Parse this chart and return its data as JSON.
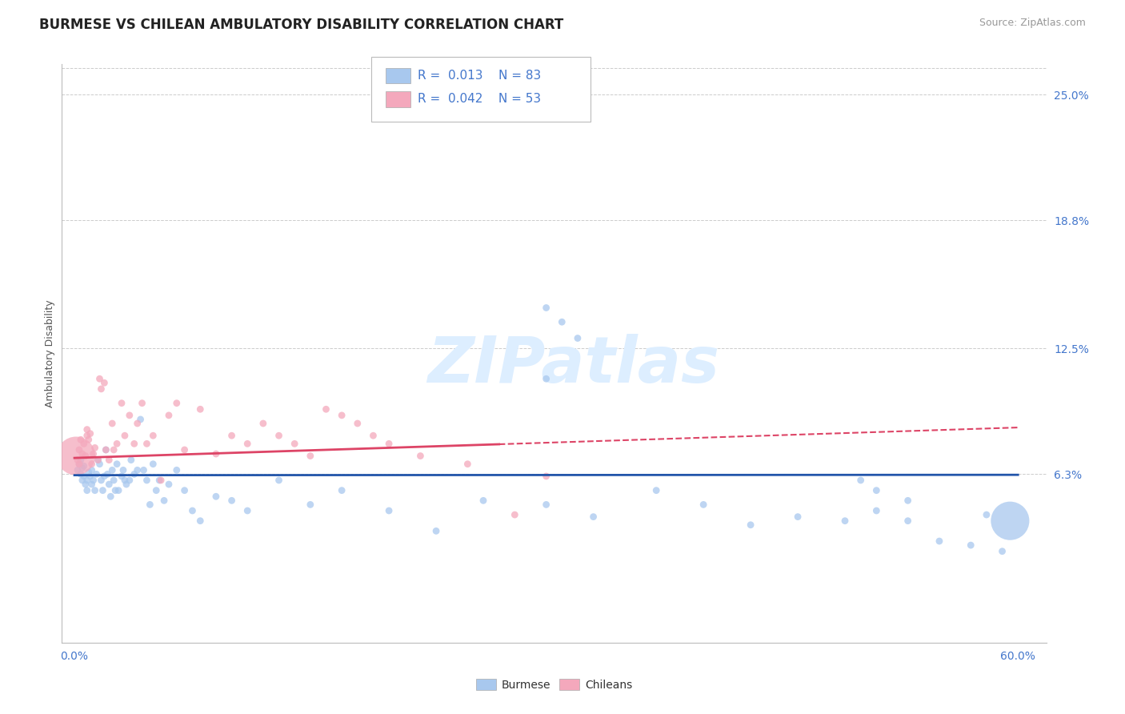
{
  "title": "BURMESE VS CHILEAN AMBULATORY DISABILITY CORRELATION CHART",
  "source": "Source: ZipAtlas.com",
  "ylabel": "Ambulatory Disability",
  "xmin": 0.0,
  "xmax": 0.6,
  "ymin": -0.02,
  "ymax": 0.265,
  "yticks": [
    0.063,
    0.125,
    0.188,
    0.25
  ],
  "ytick_labels": [
    "6.3%",
    "12.5%",
    "18.8%",
    "25.0%"
  ],
  "xticks": [
    0.0,
    0.1,
    0.2,
    0.3,
    0.4,
    0.5,
    0.6
  ],
  "xtick_labels": [
    "0.0%",
    "",
    "",
    "",
    "",
    "",
    "60.0%"
  ],
  "burmese_R": 0.013,
  "burmese_N": 83,
  "chileans_R": 0.042,
  "chileans_N": 53,
  "burmese_color": "#a8c8ee",
  "chileans_color": "#f4a8bc",
  "trend_blue": "#2255aa",
  "trend_pink": "#dd4466",
  "background_color": "#ffffff",
  "grid_color": "#cccccc",
  "tick_label_color": "#4477cc",
  "watermark": "ZIPatlas",
  "watermark_color": "#ddeeff",
  "title_fontsize": 12,
  "axis_label_fontsize": 9,
  "tick_fontsize": 10,
  "burmese_scatter_x": [
    0.002,
    0.003,
    0.004,
    0.004,
    0.005,
    0.005,
    0.006,
    0.006,
    0.007,
    0.008,
    0.008,
    0.009,
    0.01,
    0.011,
    0.011,
    0.012,
    0.013,
    0.014,
    0.015,
    0.016,
    0.017,
    0.018,
    0.019,
    0.02,
    0.021,
    0.022,
    0.023,
    0.024,
    0.025,
    0.026,
    0.027,
    0.028,
    0.03,
    0.031,
    0.032,
    0.033,
    0.035,
    0.036,
    0.038,
    0.04,
    0.042,
    0.044,
    0.046,
    0.048,
    0.05,
    0.052,
    0.054,
    0.057,
    0.06,
    0.065,
    0.07,
    0.075,
    0.08,
    0.09,
    0.1,
    0.11,
    0.13,
    0.15,
    0.17,
    0.2,
    0.23,
    0.26,
    0.3,
    0.33,
    0.37,
    0.4,
    0.43,
    0.46,
    0.49,
    0.51,
    0.53,
    0.55,
    0.57,
    0.58,
    0.59,
    0.595,
    0.3,
    0.31,
    0.32,
    0.5,
    0.51,
    0.53,
    0.3
  ],
  "burmese_scatter_y": [
    0.065,
    0.068,
    0.063,
    0.07,
    0.06,
    0.066,
    0.062,
    0.067,
    0.058,
    0.055,
    0.06,
    0.064,
    0.062,
    0.058,
    0.065,
    0.06,
    0.055,
    0.063,
    0.07,
    0.068,
    0.06,
    0.055,
    0.062,
    0.075,
    0.063,
    0.058,
    0.052,
    0.065,
    0.06,
    0.055,
    0.068,
    0.055,
    0.062,
    0.065,
    0.06,
    0.058,
    0.06,
    0.07,
    0.063,
    0.065,
    0.09,
    0.065,
    0.06,
    0.048,
    0.068,
    0.055,
    0.06,
    0.05,
    0.058,
    0.065,
    0.055,
    0.045,
    0.04,
    0.052,
    0.05,
    0.045,
    0.06,
    0.048,
    0.055,
    0.045,
    0.035,
    0.05,
    0.048,
    0.042,
    0.055,
    0.048,
    0.038,
    0.042,
    0.04,
    0.045,
    0.04,
    0.03,
    0.028,
    0.043,
    0.025,
    0.04,
    0.145,
    0.138,
    0.13,
    0.06,
    0.055,
    0.05,
    0.11
  ],
  "burmese_scatter_sizes": [
    40,
    40,
    40,
    40,
    40,
    40,
    40,
    40,
    40,
    40,
    40,
    40,
    40,
    40,
    40,
    40,
    40,
    40,
    40,
    40,
    40,
    40,
    40,
    40,
    40,
    40,
    40,
    40,
    40,
    40,
    40,
    40,
    40,
    40,
    40,
    40,
    40,
    40,
    40,
    40,
    40,
    40,
    40,
    40,
    40,
    40,
    40,
    40,
    40,
    40,
    40,
    40,
    40,
    40,
    40,
    40,
    40,
    40,
    40,
    40,
    40,
    40,
    40,
    40,
    40,
    40,
    40,
    40,
    40,
    40,
    40,
    40,
    40,
    40,
    40,
    1200,
    40,
    40,
    40,
    40,
    40,
    40,
    40
  ],
  "chileans_scatter_x": [
    0.001,
    0.002,
    0.003,
    0.003,
    0.004,
    0.005,
    0.006,
    0.007,
    0.008,
    0.008,
    0.009,
    0.01,
    0.011,
    0.012,
    0.013,
    0.015,
    0.016,
    0.017,
    0.019,
    0.02,
    0.022,
    0.024,
    0.025,
    0.027,
    0.03,
    0.032,
    0.035,
    0.038,
    0.04,
    0.043,
    0.046,
    0.05,
    0.055,
    0.06,
    0.065,
    0.07,
    0.08,
    0.09,
    0.1,
    0.11,
    0.12,
    0.13,
    0.14,
    0.15,
    0.16,
    0.17,
    0.18,
    0.19,
    0.2,
    0.22,
    0.25,
    0.28,
    0.3
  ],
  "chileans_scatter_y": [
    0.072,
    0.07,
    0.075,
    0.068,
    0.08,
    0.073,
    0.078,
    0.072,
    0.082,
    0.085,
    0.08,
    0.083,
    0.068,
    0.073,
    0.076,
    0.07,
    0.11,
    0.105,
    0.108,
    0.075,
    0.07,
    0.088,
    0.075,
    0.078,
    0.098,
    0.082,
    0.092,
    0.078,
    0.088,
    0.098,
    0.078,
    0.082,
    0.06,
    0.092,
    0.098,
    0.075,
    0.095,
    0.073,
    0.082,
    0.078,
    0.088,
    0.082,
    0.078,
    0.072,
    0.095,
    0.092,
    0.088,
    0.082,
    0.078,
    0.072,
    0.068,
    0.043,
    0.062
  ],
  "chileans_scatter_sizes": [
    1200,
    40,
    40,
    40,
    40,
    40,
    40,
    40,
    40,
    40,
    40,
    40,
    40,
    40,
    40,
    40,
    40,
    40,
    40,
    40,
    40,
    40,
    40,
    40,
    40,
    40,
    40,
    40,
    40,
    40,
    40,
    40,
    40,
    40,
    40,
    40,
    40,
    40,
    40,
    40,
    40,
    40,
    40,
    40,
    40,
    40,
    40,
    40,
    40,
    40,
    40,
    40,
    40
  ]
}
